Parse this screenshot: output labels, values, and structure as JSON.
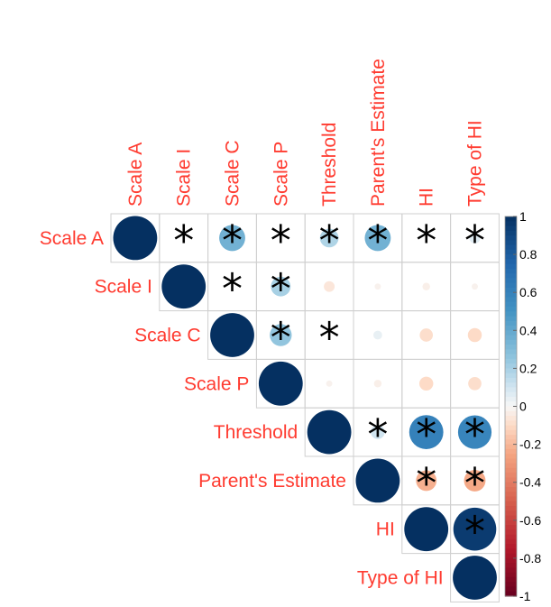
{
  "chart_data": {
    "type": "heatmap",
    "subtype": "correlation-matrix-upper-circles",
    "variables": [
      "Scale A",
      "Scale I",
      "Scale C",
      "Scale P",
      "Threshold",
      "Parent's Estimate",
      "HI",
      "Type of HI"
    ],
    "matrix": [
      [
        1.0,
        0.0,
        0.35,
        0.0,
        0.18,
        0.35,
        0.0,
        0.06
      ],
      [
        0.0,
        1.0,
        0.0,
        0.2,
        -0.06,
        -0.02,
        -0.03,
        -0.02
      ],
      [
        0.35,
        0.0,
        1.0,
        0.25,
        0.0,
        0.04,
        -0.09,
        -0.1
      ],
      [
        0.0,
        0.2,
        0.25,
        1.0,
        -0.02,
        -0.03,
        -0.1,
        -0.09
      ],
      [
        0.18,
        -0.06,
        0.0,
        -0.02,
        1.0,
        0.1,
        0.6,
        0.58
      ],
      [
        0.35,
        -0.02,
        0.04,
        -0.03,
        0.1,
        1.0,
        -0.22,
        -0.24
      ],
      [
        0.0,
        -0.03,
        -0.09,
        -0.1,
        0.6,
        -0.22,
        1.0,
        0.95
      ],
      [
        0.06,
        -0.02,
        -0.1,
        -0.09,
        0.58,
        -0.24,
        0.95,
        1.0
      ]
    ],
    "significant": [
      [
        0,
        1
      ],
      [
        0,
        2
      ],
      [
        0,
        3
      ],
      [
        0,
        4
      ],
      [
        0,
        5
      ],
      [
        0,
        6
      ],
      [
        0,
        7
      ],
      [
        1,
        2
      ],
      [
        1,
        3
      ],
      [
        2,
        3
      ],
      [
        2,
        4
      ],
      [
        4,
        5
      ],
      [
        4,
        6
      ],
      [
        4,
        7
      ],
      [
        5,
        6
      ],
      [
        5,
        7
      ],
      [
        6,
        7
      ]
    ],
    "significance_marker": "*",
    "colorbar": {
      "min": -1,
      "max": 1,
      "ticks": [
        "1",
        "0.8",
        "0.6",
        "0.4",
        "0.2",
        "0",
        "-0.2",
        "-0.4",
        "-0.6",
        "-0.8",
        "-1"
      ]
    },
    "palette": {
      "positive_strong": "#053061",
      "positive_mid": "#4393c3",
      "neutral": "#f7f7f7",
      "negative_mid": "#d6604d",
      "negative_strong": "#67001f"
    },
    "label_color": "#ff3b30",
    "grid_color": "#cfcfcf"
  }
}
